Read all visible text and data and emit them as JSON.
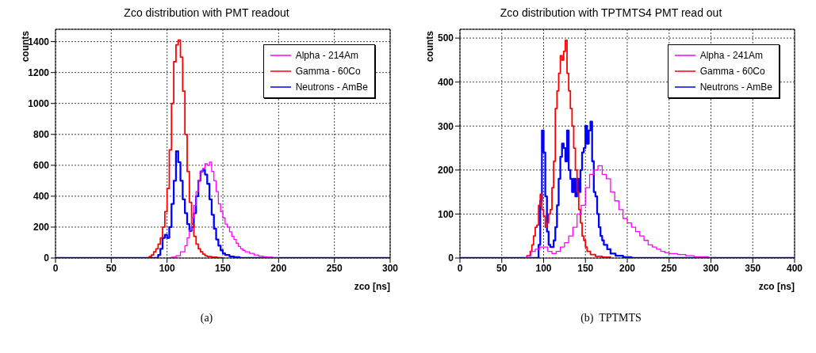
{
  "chart_data": [
    {
      "type": "step",
      "title": "Zco distribution with PMT readout",
      "xlabel": "zco [ns]",
      "ylabel": "counts",
      "annotations": [
        "(a)"
      ],
      "xlim": [
        0,
        300
      ],
      "ylim": [
        0,
        1480
      ],
      "xticks": [
        0,
        50,
        100,
        150,
        200,
        250,
        300
      ],
      "yticks": [
        0,
        200,
        400,
        600,
        800,
        1000,
        1200,
        1400
      ],
      "grid": true,
      "legend": "top right",
      "series": [
        {
          "name": "Alpha - 214Am",
          "color": "#ff00ff",
          "x": [
            100,
            104,
            108,
            112,
            116,
            118,
            120,
            122,
            124,
            126,
            128,
            130,
            132,
            134,
            136,
            138,
            140,
            142,
            144,
            146,
            148,
            150,
            152,
            154,
            156,
            158,
            160,
            162,
            164,
            166,
            168,
            170,
            174,
            178,
            182,
            186,
            190,
            195,
            200
          ],
          "values": [
            0,
            5,
            15,
            40,
            80,
            130,
            180,
            260,
            340,
            430,
            500,
            560,
            580,
            610,
            600,
            620,
            560,
            500,
            430,
            350,
            300,
            260,
            220,
            200,
            170,
            140,
            120,
            95,
            75,
            60,
            50,
            40,
            30,
            20,
            12,
            8,
            5,
            2,
            0
          ]
        },
        {
          "name": "Gamma - 60Co",
          "color": "#ff0000",
          "x": [
            83,
            84,
            86,
            88,
            90,
            92,
            94,
            96,
            98,
            100,
            102,
            104,
            106,
            108,
            110,
            112,
            114,
            116,
            118,
            120,
            122,
            124,
            126,
            128,
            130,
            132,
            134,
            136,
            140,
            145,
            150
          ],
          "values": [
            0,
            10,
            20,
            40,
            60,
            90,
            130,
            200,
            300,
            450,
            700,
            1000,
            1270,
            1380,
            1410,
            1300,
            1080,
            800,
            560,
            360,
            220,
            140,
            90,
            60,
            40,
            25,
            15,
            10,
            5,
            2,
            0
          ]
        },
        {
          "name": "Neutrons - AmBe",
          "color": "#0000ff",
          "x": [
            0,
            90,
            92,
            94,
            96,
            98,
            100,
            102,
            104,
            106,
            108,
            110,
            112,
            114,
            116,
            118,
            120,
            122,
            124,
            126,
            128,
            130,
            132,
            134,
            136,
            138,
            140,
            142,
            144,
            146,
            148,
            150,
            152,
            156,
            160,
            165,
            300
          ],
          "values": [
            0,
            0,
            20,
            60,
            130,
            150,
            130,
            200,
            350,
            500,
            690,
            620,
            500,
            380,
            290,
            220,
            175,
            200,
            290,
            400,
            500,
            560,
            570,
            540,
            480,
            380,
            280,
            190,
            120,
            80,
            50,
            30,
            20,
            10,
            5,
            0,
            0
          ]
        }
      ]
    },
    {
      "type": "step",
      "title": "Zco distribution with TPTMTS4 PMT read out",
      "xlabel": "zco [ns]",
      "ylabel": "counts",
      "annotations": [
        "(b)  TPTMTS"
      ],
      "xlim": [
        0,
        400
      ],
      "ylim": [
        0,
        520
      ],
      "xticks": [
        0,
        50,
        100,
        150,
        200,
        250,
        300,
        350,
        400
      ],
      "yticks": [
        0,
        100,
        200,
        300,
        400,
        500
      ],
      "grid": true,
      "legend": "top right",
      "series": [
        {
          "name": "Alpha - 241Am",
          "color": "#ff00ff",
          "x": [
            78,
            80,
            85,
            90,
            95,
            100,
            105,
            110,
            115,
            120,
            125,
            130,
            135,
            140,
            145,
            150,
            155,
            160,
            165,
            170,
            175,
            180,
            185,
            190,
            195,
            200,
            205,
            210,
            215,
            220,
            225,
            230,
            235,
            240,
            245,
            250,
            260,
            270,
            280,
            290,
            297
          ],
          "values": [
            0,
            5,
            15,
            20,
            25,
            25,
            15,
            10,
            15,
            25,
            35,
            50,
            70,
            100,
            120,
            160,
            190,
            200,
            210,
            190,
            180,
            150,
            130,
            110,
            90,
            80,
            70,
            60,
            50,
            40,
            30,
            25,
            20,
            15,
            12,
            10,
            8,
            5,
            3,
            3,
            0
          ]
        },
        {
          "name": "Gamma - 60Co",
          "color": "#ff0000",
          "x": [
            78,
            80,
            84,
            86,
            88,
            90,
            92,
            94,
            96,
            98,
            100,
            102,
            104,
            106,
            108,
            110,
            112,
            114,
            116,
            118,
            120,
            122,
            124,
            126,
            128,
            130,
            132,
            134,
            136,
            138,
            140,
            142,
            144,
            146,
            148,
            150,
            152,
            156,
            162,
            170,
            180
          ],
          "values": [
            0,
            5,
            15,
            30,
            50,
            70,
            75,
            120,
            145,
            110,
            95,
            70,
            80,
            100,
            110,
            160,
            220,
            340,
            380,
            420,
            460,
            450,
            470,
            495,
            420,
            380,
            340,
            300,
            250,
            200,
            150,
            110,
            80,
            50,
            40,
            25,
            15,
            8,
            4,
            2,
            0
          ]
        },
        {
          "name": "Neutrons - AmBe",
          "color": "#0000ff",
          "x": [
            0,
            92,
            94,
            96,
            98,
            100,
            102,
            104,
            106,
            108,
            110,
            112,
            114,
            116,
            118,
            120,
            122,
            124,
            126,
            128,
            130,
            132,
            134,
            136,
            138,
            140,
            142,
            144,
            146,
            148,
            150,
            152,
            154,
            156,
            158,
            160,
            162,
            164,
            166,
            168,
            170,
            172,
            176,
            180,
            186,
            195,
            205,
            400
          ],
          "values": [
            0,
            0,
            30,
            130,
            290,
            240,
            140,
            60,
            30,
            25,
            25,
            40,
            70,
            120,
            180,
            230,
            260,
            250,
            220,
            290,
            200,
            180,
            150,
            180,
            140,
            180,
            150,
            200,
            240,
            250,
            300,
            260,
            290,
            310,
            220,
            150,
            140,
            100,
            70,
            50,
            40,
            30,
            20,
            10,
            5,
            2,
            0,
            0
          ]
        }
      ]
    }
  ]
}
